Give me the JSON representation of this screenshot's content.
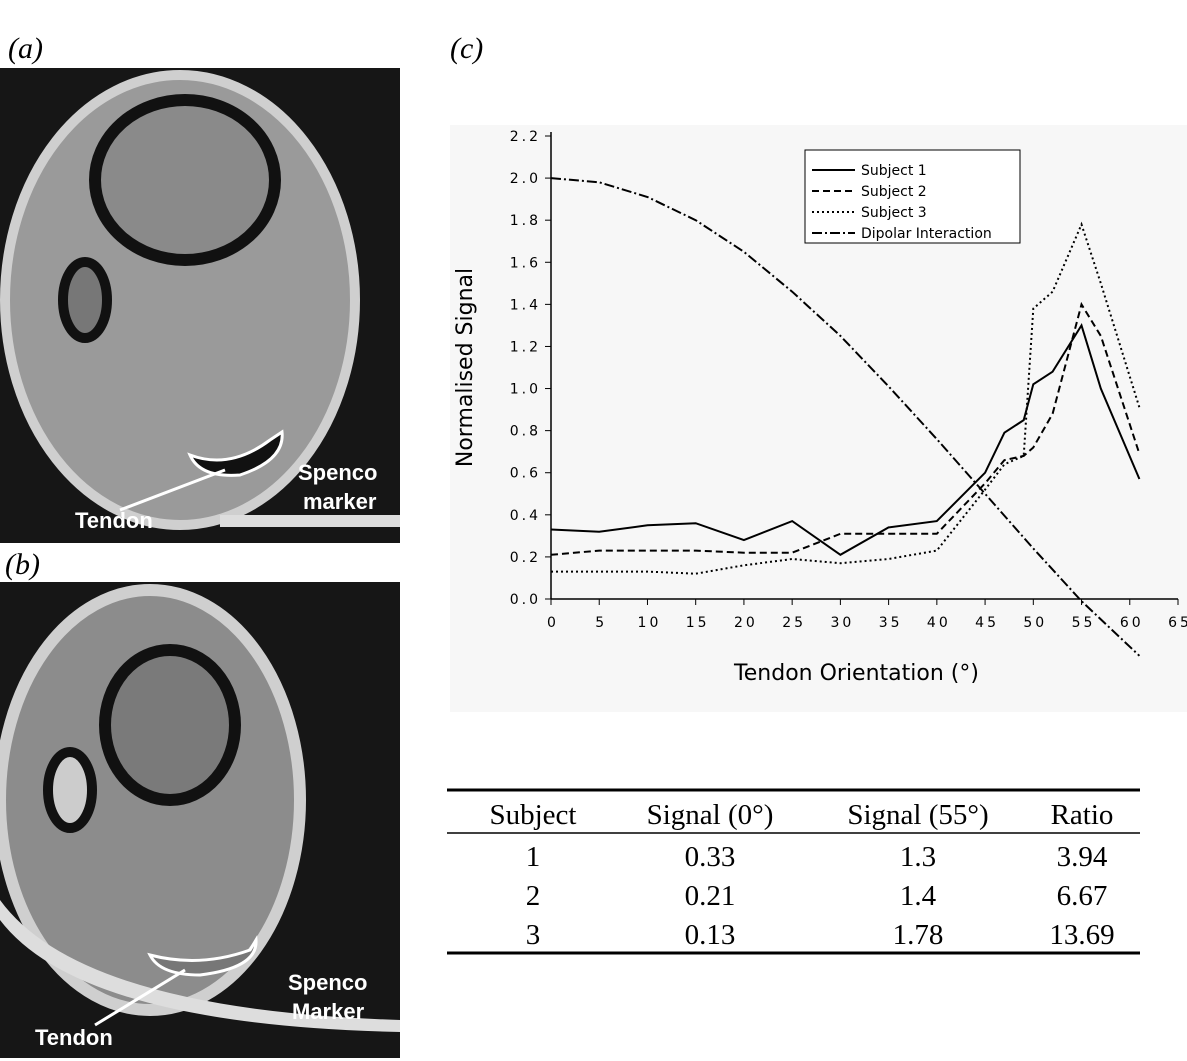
{
  "panels": [
    {
      "label": "(a)",
      "annotations": [
        "Tendon",
        "Spenco",
        "marker"
      ]
    },
    {
      "label": "(b)",
      "annotations": [
        "Tendon",
        "Spenco",
        "Marker"
      ]
    },
    {
      "label": "(c)"
    }
  ],
  "chart_data": {
    "type": "line",
    "xlabel": "Tendon Orientation (°)",
    "ylabel": "Normalised Signal",
    "xlim": [
      0,
      65
    ],
    "xticks": [
      0,
      5,
      10,
      15,
      20,
      25,
      30,
      35,
      40,
      45,
      50,
      55,
      60,
      65
    ],
    "ylim": [
      0,
      2.2
    ],
    "yticks": [
      {
        "value": 0,
        "label": "0.0"
      },
      0.2,
      0.4,
      0.6,
      0.8,
      {
        "value": 1,
        "label": "1.0"
      },
      1.2,
      1.4,
      1.6,
      1.8,
      {
        "value": 2,
        "label": "2.0"
      },
      2.2
    ],
    "series": [
      {
        "name": "Subject 1",
        "color": "#000000",
        "style": "solid",
        "x": [
          0,
          5,
          10,
          15,
          20,
          25,
          30,
          35,
          40,
          45,
          47,
          49,
          50,
          52,
          55,
          57,
          61
        ],
        "values": [
          0.33,
          0.32,
          0.35,
          0.36,
          0.28,
          0.37,
          0.21,
          0.34,
          0.37,
          0.6,
          0.79,
          0.85,
          1.02,
          1.08,
          1.3,
          1.0,
          0.57
        ]
      },
      {
        "name": "Subject 2",
        "color": "#000000",
        "style": "dashed",
        "x": [
          0,
          5,
          10,
          15,
          20,
          25,
          30,
          35,
          40,
          45,
          47,
          49,
          50,
          52,
          55,
          57,
          61
        ],
        "values": [
          0.21,
          0.23,
          0.23,
          0.23,
          0.22,
          0.22,
          0.31,
          0.31,
          0.31,
          0.55,
          0.66,
          0.68,
          0.72,
          0.88,
          1.4,
          1.25,
          0.69
        ]
      },
      {
        "name": "Subject 3",
        "color": "#000000",
        "style": "dotted",
        "x": [
          0,
          5,
          10,
          15,
          20,
          25,
          30,
          35,
          40,
          45,
          47,
          49,
          50,
          52,
          55,
          57,
          61
        ],
        "values": [
          0.13,
          0.13,
          0.13,
          0.12,
          0.16,
          0.19,
          0.17,
          0.19,
          0.23,
          0.52,
          0.64,
          0.68,
          1.38,
          1.46,
          1.78,
          1.5,
          0.91
        ]
      },
      {
        "name": "Dipolar Interaction",
        "color": "#000000",
        "style": "dashdot",
        "x": [
          0,
          5,
          10,
          15,
          20,
          25,
          30,
          35,
          40,
          45,
          50,
          55,
          61
        ],
        "values": [
          2.0,
          1.98,
          1.91,
          1.8,
          1.65,
          1.46,
          1.25,
          1.01,
          0.76,
          0.5,
          0.24,
          -0.01,
          -0.27
        ]
      }
    ]
  },
  "table": {
    "header": [
      "Subject",
      "Signal (0°)",
      "Signal (55°)",
      "Ratio"
    ],
    "rows": [
      [
        "1",
        "0.33",
        "1.3",
        "3.94"
      ],
      [
        "2",
        "0.21",
        "1.4",
        "6.67"
      ],
      [
        "3",
        "0.13",
        "1.78",
        "13.69"
      ]
    ]
  }
}
